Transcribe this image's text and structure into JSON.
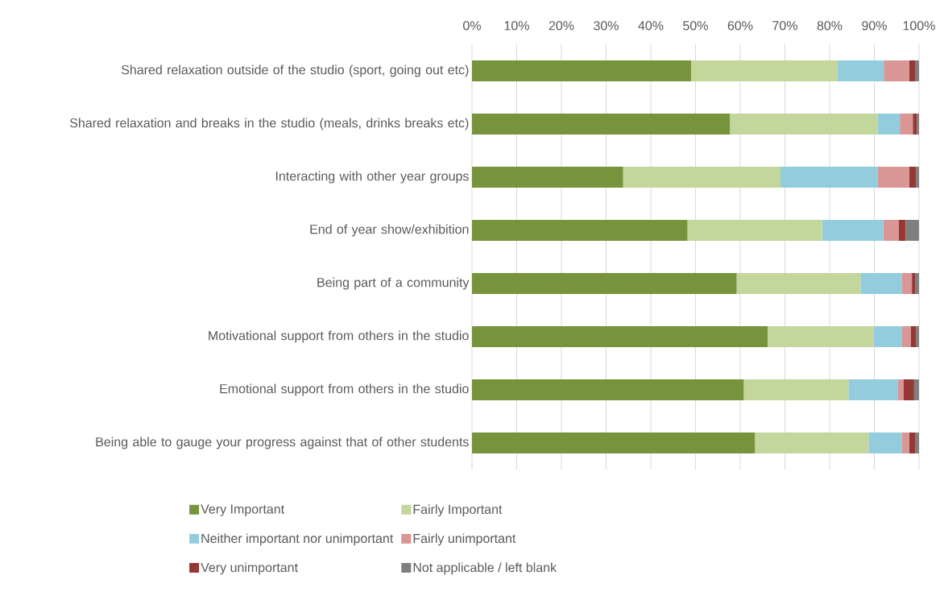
{
  "chart_data": {
    "type": "bar",
    "orientation": "horizontal",
    "stacked": true,
    "categories": [
      "Shared relaxation outside of the studio (sport, going out etc)",
      "Shared relaxation and breaks in the studio (meals, drinks breaks etc)",
      "Interacting with other year groups",
      "End of year show/exhibition",
      "Being part of a community",
      "Motivational support from others in the studio",
      "Emotional support from others in the studio",
      "Being able to gauge your progress against that of other students"
    ],
    "series": [
      {
        "name": "Very Important",
        "color": "#77933c",
        "values": [
          49.0,
          57.7,
          33.8,
          48.2,
          59.2,
          66.2,
          60.8,
          63.3
        ]
      },
      {
        "name": "Fairly Important",
        "color": "#c3d69b",
        "values": [
          32.7,
          33.0,
          35.2,
          30.1,
          27.7,
          23.6,
          23.4,
          25.4
        ]
      },
      {
        "name": "Neither important nor unimportant",
        "color": "#93cddd",
        "values": [
          10.4,
          5.0,
          21.7,
          13.7,
          9.2,
          6.4,
          11.1,
          7.4
        ]
      },
      {
        "name": "Fairly unimportant",
        "color": "#d99694",
        "values": [
          5.7,
          2.9,
          7.1,
          3.5,
          2.3,
          2.0,
          1.2,
          1.7
        ]
      },
      {
        "name": "Very unimportant",
        "color": "#953735",
        "values": [
          1.3,
          0.9,
          1.5,
          1.5,
          0.7,
          1.1,
          2.4,
          1.3
        ]
      },
      {
        "name": "Not applicable / left blank",
        "color": "#7f7f7f",
        "values": [
          0.9,
          0.5,
          0.7,
          3.0,
          0.9,
          0.7,
          1.1,
          0.9
        ]
      }
    ],
    "xlim": [
      0,
      100
    ],
    "xticks": [
      {
        "value": 0,
        "label": "0%"
      },
      {
        "value": 10,
        "label": "10%"
      },
      {
        "value": 20,
        "label": "20%"
      },
      {
        "value": 30,
        "label": "30%"
      },
      {
        "value": 40,
        "label": "40%"
      },
      {
        "value": 50,
        "label": "50%"
      },
      {
        "value": 60,
        "label": "60%"
      },
      {
        "value": 70,
        "label": "70%"
      },
      {
        "value": 80,
        "label": "80%"
      },
      {
        "value": 90,
        "label": "90%"
      },
      {
        "value": 100,
        "label": "100%"
      }
    ],
    "grid": "x",
    "legend": "bottom"
  }
}
